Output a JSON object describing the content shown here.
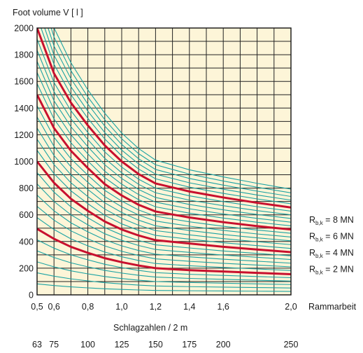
{
  "chart_data": {
    "type": "line",
    "ylabel": "Foot volume V [ l ]",
    "xlabel": "Rammarbeit",
    "xlabel2": "Schlagzahlen / 2 m",
    "xlim": [
      0.5,
      2.0
    ],
    "ylim": [
      0,
      2000
    ],
    "grid": true,
    "y_ticks": [
      "0",
      "200",
      "400",
      "600",
      "800",
      "1000",
      "1200",
      "1400",
      "1600",
      "1800",
      "2000"
    ],
    "x_ticks": [
      {
        "x": 0.5,
        "label": "0,5"
      },
      {
        "x": 0.6,
        "label": "0,6"
      },
      {
        "x": 0.8,
        "label": "0,8"
      },
      {
        "x": 1.0,
        "label": "1,0"
      },
      {
        "x": 1.2,
        "label": "1,2"
      },
      {
        "x": 1.4,
        "label": "1,4"
      },
      {
        "x": 1.6,
        "label": "1,6"
      },
      {
        "x": 2.0,
        "label": "2,0"
      }
    ],
    "blow_ticks": [
      {
        "x": 0.5,
        "label": "63"
      },
      {
        "x": 0.6,
        "label": "75"
      },
      {
        "x": 0.8,
        "label": "100"
      },
      {
        "x": 1.0,
        "label": "125"
      },
      {
        "x": 1.2,
        "label": "150"
      },
      {
        "x": 1.4,
        "label": "175"
      },
      {
        "x": 1.6,
        "label": "200"
      },
      {
        "x": 2.0,
        "label": "250"
      }
    ],
    "series": [
      {
        "name": "R_b,k = 2 MN",
        "color": "#c8102e",
        "points": [
          [
            0.5,
            495
          ],
          [
            0.6,
            420
          ],
          [
            0.7,
            360
          ],
          [
            0.8,
            315
          ],
          [
            0.9,
            275
          ],
          [
            1.0,
            245
          ],
          [
            1.1,
            220
          ],
          [
            1.2,
            200
          ],
          [
            1.4,
            185
          ],
          [
            1.6,
            175
          ],
          [
            1.8,
            165
          ],
          [
            2.0,
            155
          ]
        ]
      },
      {
        "name": "R_b,k = 4 MN",
        "color": "#c8102e",
        "points": [
          [
            0.5,
            1000
          ],
          [
            0.6,
            840
          ],
          [
            0.7,
            720
          ],
          [
            0.8,
            630
          ],
          [
            0.9,
            550
          ],
          [
            1.0,
            490
          ],
          [
            1.1,
            445
          ],
          [
            1.2,
            410
          ],
          [
            1.4,
            385
          ],
          [
            1.6,
            360
          ],
          [
            1.8,
            340
          ],
          [
            2.0,
            320
          ]
        ]
      },
      {
        "name": "R_b,k = 6 MN",
        "color": "#c8102e",
        "points": [
          [
            0.5,
            1500
          ],
          [
            0.6,
            1250
          ],
          [
            0.7,
            1080
          ],
          [
            0.8,
            950
          ],
          [
            0.9,
            830
          ],
          [
            1.0,
            745
          ],
          [
            1.1,
            675
          ],
          [
            1.2,
            625
          ],
          [
            1.4,
            580
          ],
          [
            1.6,
            545
          ],
          [
            1.8,
            515
          ],
          [
            2.0,
            490
          ]
        ]
      },
      {
        "name": "R_b,k = 8 MN",
        "color": "#c8102e",
        "points": [
          [
            0.5,
            2000
          ],
          [
            0.6,
            1660
          ],
          [
            0.7,
            1440
          ],
          [
            0.8,
            1270
          ],
          [
            0.9,
            1120
          ],
          [
            1.0,
            1000
          ],
          [
            1.1,
            905
          ],
          [
            1.2,
            835
          ],
          [
            1.4,
            775
          ],
          [
            1.6,
            730
          ],
          [
            1.8,
            690
          ],
          [
            2.0,
            655
          ]
        ]
      }
    ],
    "legend": [
      "R_b,k = 8 MN",
      "R_b,k = 6 MN",
      "R_b,k = 4 MN",
      "R_b,k = 2 MN"
    ],
    "legend_position": "right",
    "intermediate_lines": 5,
    "plot_background": "#fdf5d8",
    "intermediate_color": "#1aa3a3"
  }
}
